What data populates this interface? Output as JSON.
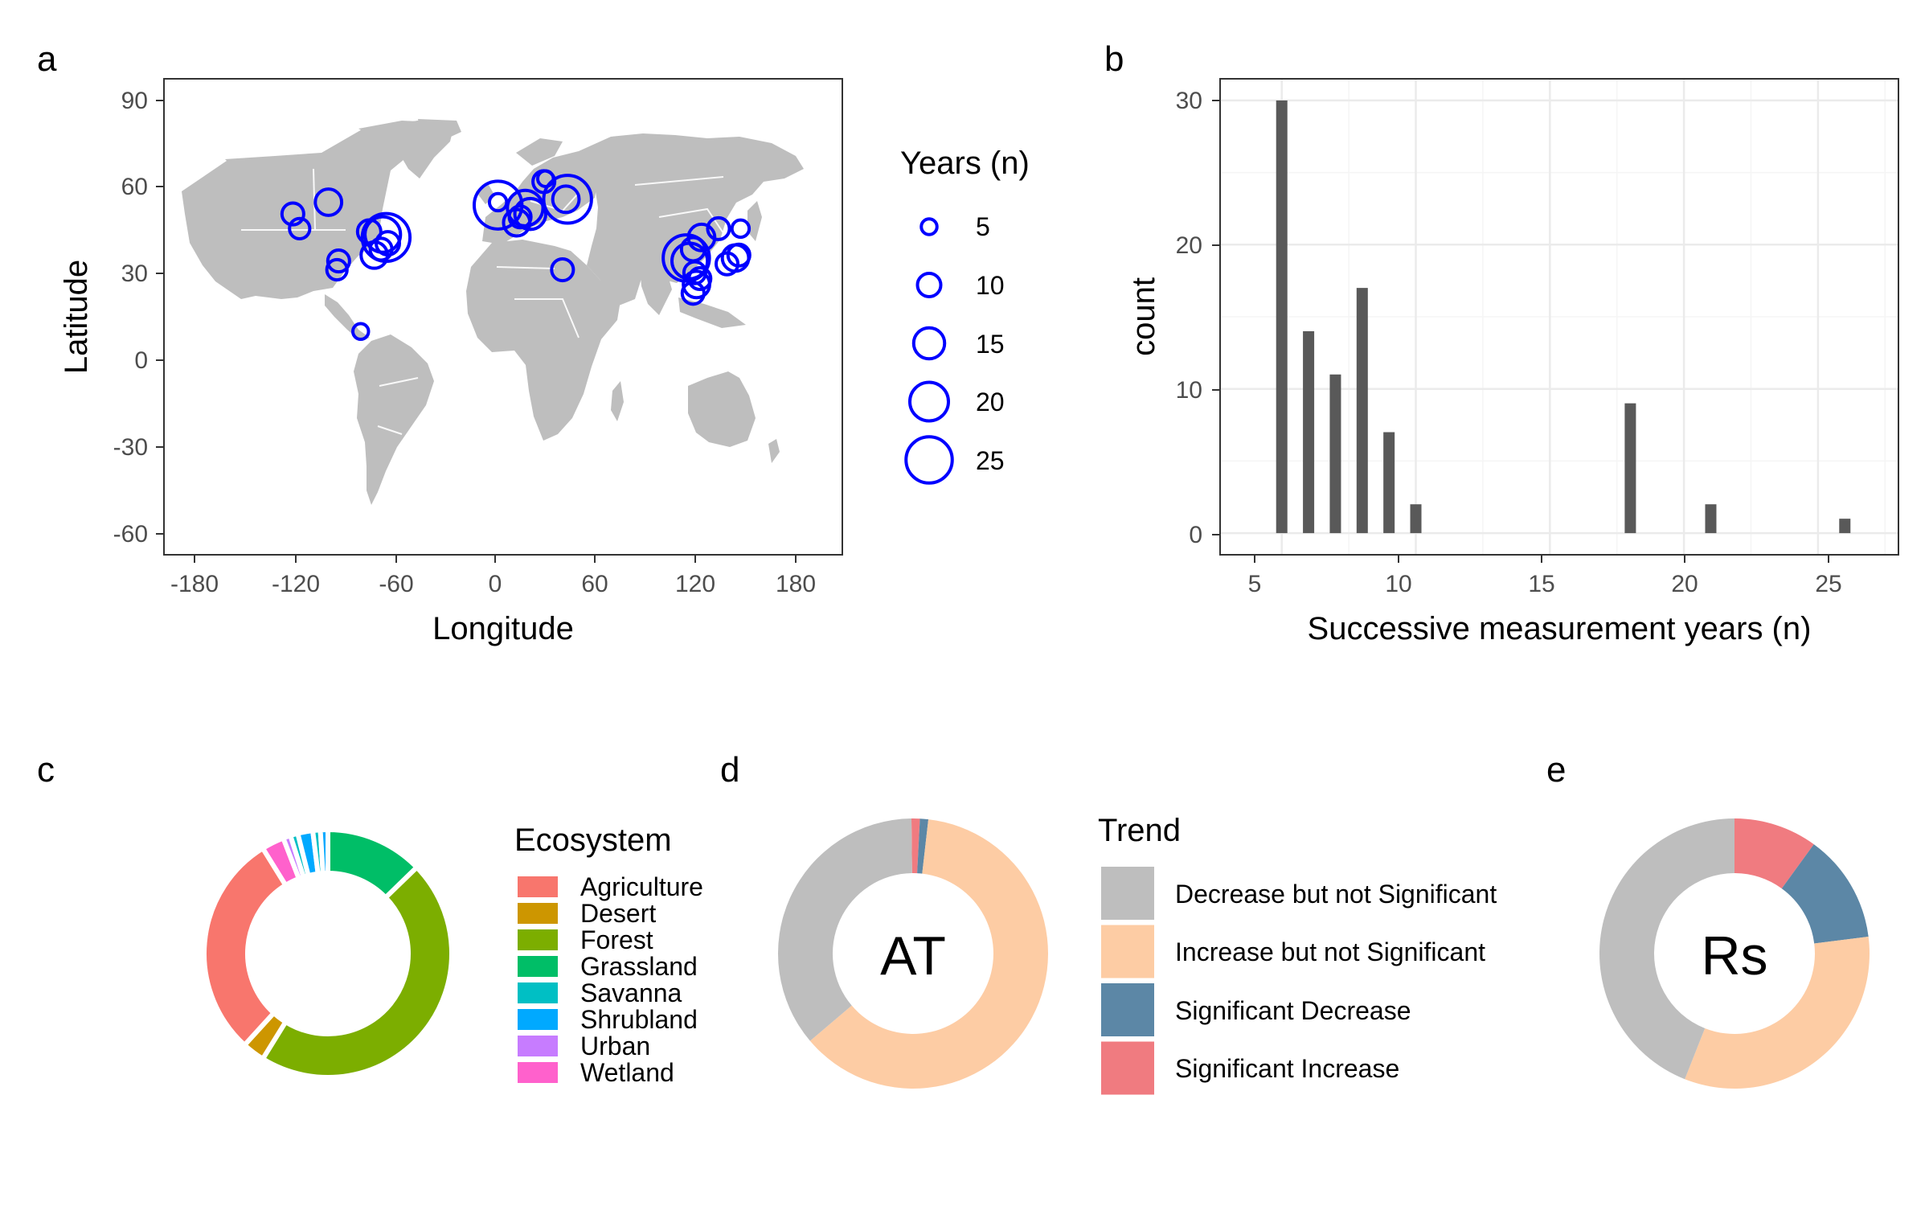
{
  "panel_labels": [
    "a",
    "b",
    "c",
    "d",
    "e"
  ],
  "colors": {
    "land": "#bebebe",
    "point_stroke": "#0000ff",
    "bar_fill": "#595959",
    "grid_major": "#ebebeb",
    "grid_minor": "#f5f5f5",
    "frame": "#333333"
  },
  "chart_data": [
    {
      "panel": "a",
      "type": "scatter",
      "subtype": "bubble map",
      "xlabel": "Longitude",
      "ylabel": "Latitude",
      "xlim": [
        -200,
        200
      ],
      "ylim": [
        -66,
        96
      ],
      "xticks": [
        -180,
        -120,
        -60,
        0,
        60,
        120,
        180
      ],
      "yticks": [
        90,
        60,
        30,
        0,
        -30,
        -60
      ],
      "grid": false,
      "legend": {
        "title": "Years (n)",
        "position": "right",
        "sizes": [
          5,
          10,
          15,
          20,
          25
        ]
      },
      "points": [
        {
          "lon": -124,
          "lat": 50,
          "n": 9
        },
        {
          "lon": -120,
          "lat": 45,
          "n": 8
        },
        {
          "lon": -103,
          "lat": 54,
          "n": 12
        },
        {
          "lon": -97,
          "lat": 34,
          "n": 9
        },
        {
          "lon": -98,
          "lat": 31,
          "n": 8
        },
        {
          "lon": -84,
          "lat": 10,
          "n": 5
        },
        {
          "lon": -79,
          "lat": 44,
          "n": 10
        },
        {
          "lon": -76,
          "lat": 36,
          "n": 12
        },
        {
          "lon": -72,
          "lat": 38,
          "n": 9
        },
        {
          "lon": -71,
          "lat": 43,
          "n": 18
        },
        {
          "lon": -69,
          "lat": 42,
          "n": 26
        },
        {
          "lon": -68,
          "lat": 40,
          "n": 10
        },
        {
          "lon": -3,
          "lat": 53,
          "n": 26
        },
        {
          "lon": -3,
          "lat": 54,
          "n": 6
        },
        {
          "lon": 8,
          "lat": 47,
          "n": 12
        },
        {
          "lon": 10,
          "lat": 49,
          "n": 9
        },
        {
          "lon": 13,
          "lat": 52,
          "n": 18
        },
        {
          "lon": 16,
          "lat": 50,
          "n": 15
        },
        {
          "lon": 24,
          "lat": 61,
          "n": 9
        },
        {
          "lon": 25,
          "lat": 62,
          "n": 5
        },
        {
          "lon": 38,
          "lat": 55,
          "n": 26
        },
        {
          "lon": 37,
          "lat": 55,
          "n": 12
        },
        {
          "lon": 35,
          "lat": 31,
          "n": 9
        },
        {
          "lon": 108,
          "lat": 35,
          "n": 25
        },
        {
          "lon": 110,
          "lat": 34,
          "n": 18
        },
        {
          "lon": 112,
          "lat": 38,
          "n": 10
        },
        {
          "lon": 113,
          "lat": 30,
          "n": 9
        },
        {
          "lon": 114,
          "lat": 26,
          "n": 12
        },
        {
          "lon": 112,
          "lat": 23,
          "n": 9
        },
        {
          "lon": 117,
          "lat": 42,
          "n": 12
        },
        {
          "lon": 116,
          "lat": 28,
          "n": 9
        },
        {
          "lon": 127,
          "lat": 45,
          "n": 9
        },
        {
          "lon": 132,
          "lat": 33,
          "n": 9
        },
        {
          "lon": 137,
          "lat": 35,
          "n": 12
        },
        {
          "lon": 140,
          "lat": 45,
          "n": 6
        },
        {
          "lon": 139,
          "lat": 36,
          "n": 9
        }
      ]
    },
    {
      "panel": "b",
      "type": "bar",
      "subtype": "histogram",
      "xlabel": "Successive measurement years (n)",
      "ylabel": "count",
      "xlim": [
        2.7,
        28.0
      ],
      "ylim": [
        -1.5,
        31.5
      ],
      "xticks": [
        5,
        10,
        15,
        20,
        25
      ],
      "yticks": [
        0,
        10,
        20,
        30
      ],
      "grid": true,
      "x": [
        5,
        6,
        7,
        8,
        9,
        10,
        18,
        21,
        26
      ],
      "values": [
        30,
        14,
        11,
        17,
        7,
        2,
        9,
        2,
        1
      ]
    },
    {
      "panel": "c",
      "type": "pie",
      "subtype": "donut",
      "legend": {
        "title": "Ecosystem",
        "position": "right"
      },
      "categories": [
        "Agriculture",
        "Desert",
        "Forest",
        "Grassland",
        "Savanna",
        "Shrubland",
        "Urban",
        "Wetland"
      ],
      "category_colors": [
        "#f8766d",
        "#cd9600",
        "#7cae00",
        "#00be67",
        "#00bfc4",
        "#00a9ff",
        "#c77cff",
        "#ff61cc"
      ],
      "slices": [
        {
          "category": "Grassland",
          "value": 13
        },
        {
          "category": "Forest",
          "value": 47
        },
        {
          "category": "Desert",
          "value": 3
        },
        {
          "category": "Agriculture",
          "value": 30
        },
        {
          "category": "Wetland",
          "value": 3
        },
        {
          "category": "Urban",
          "value": 1
        },
        {
          "category": "Savanna",
          "value": 1
        },
        {
          "category": "Shrubland",
          "value": 2
        },
        {
          "category": "Savanna",
          "value": 1
        },
        {
          "category": "Shrubland",
          "value": 1
        }
      ]
    },
    {
      "panel": "d",
      "type": "pie",
      "subtype": "donut",
      "center_label": "AT",
      "legend": {
        "title": "Trend",
        "position": "right"
      },
      "categories": [
        "Decrease but not Significant",
        "Increase but not Significant",
        "Significant Decrease",
        "Significant Increase"
      ],
      "category_colors": [
        "#bebebe",
        "#fdcca4",
        "#5c87a6",
        "#f07b80"
      ],
      "values": [
        36,
        62,
        1,
        1
      ]
    },
    {
      "panel": "e",
      "type": "pie",
      "subtype": "donut",
      "center_label": "Rs",
      "categories": [
        "Decrease but not Significant",
        "Increase but not Significant",
        "Significant Decrease",
        "Significant Increase"
      ],
      "category_colors": [
        "#bebebe",
        "#fdcca4",
        "#5c87a6",
        "#f07b80"
      ],
      "values": [
        44,
        33,
        13,
        10
      ]
    }
  ]
}
